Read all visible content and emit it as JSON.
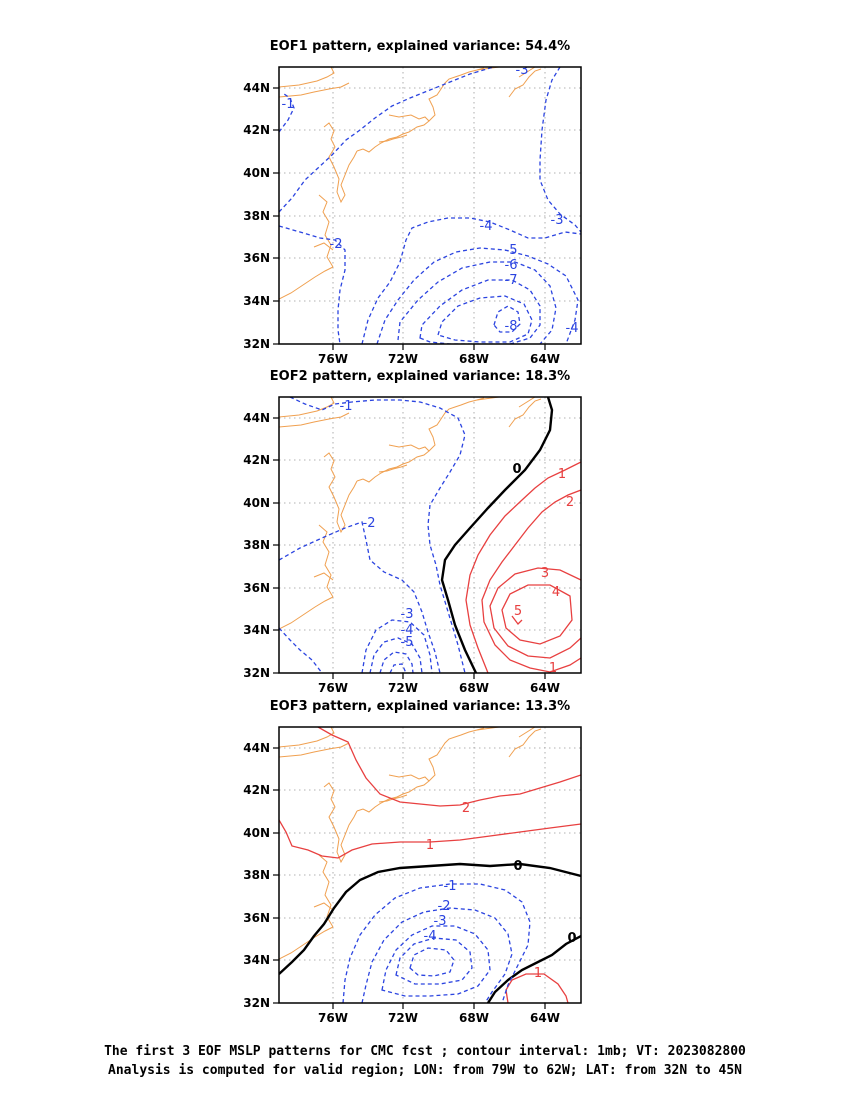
{
  "chart_data": [
    {
      "type": "contour-map",
      "title": "EOF1 pattern, explained variance: 54.4%",
      "lon_range": [
        -78.5,
        -62
      ],
      "lat_range": [
        32,
        45
      ],
      "xticks": [
        "76W",
        "72W",
        "68W",
        "64W"
      ],
      "yticks": [
        "32N",
        "34N",
        "36N",
        "38N",
        "40N",
        "42N",
        "44N"
      ],
      "grid": true,
      "contour_labels": [
        "-1",
        "-2",
        "-3",
        "-3",
        "-4",
        "-4",
        "-5",
        "-6",
        "-7",
        "-8"
      ]
    },
    {
      "type": "contour-map",
      "title": "EOF2 pattern, explained variance: 18.3%",
      "lon_range": [
        -78.5,
        -62
      ],
      "lat_range": [
        32,
        45
      ],
      "xticks": [
        "76W",
        "72W",
        "68W",
        "64W"
      ],
      "yticks": [
        "32N",
        "34N",
        "36N",
        "38N",
        "40N",
        "42N",
        "44N"
      ],
      "grid": true,
      "contour_labels": [
        "-1",
        "-2",
        "-3",
        "-4",
        "-5",
        "0",
        "1",
        "2",
        "3",
        "4",
        "5",
        "1"
      ]
    },
    {
      "type": "contour-map",
      "title": "EOF3 pattern, explained variance: 13.3%",
      "lon_range": [
        -78.5,
        -62
      ],
      "lat_range": [
        32,
        45
      ],
      "xticks": [
        "76W",
        "72W",
        "68W",
        "64W"
      ],
      "yticks": [
        "32N",
        "34N",
        "36N",
        "38N",
        "40N",
        "42N",
        "44N"
      ],
      "grid": true,
      "contour_labels": [
        "2",
        "1",
        "0",
        "0",
        "-1",
        "-2",
        "-3",
        "-4",
        "1"
      ]
    }
  ],
  "colors": {
    "negative": "#2b44e0",
    "positive": "#e84040",
    "zero": "#000000",
    "coast": "#f0a050",
    "grid": "#999999"
  },
  "caption": {
    "line1": "The first 3 EOF MSLP patterns for CMC fcst ; contour interval: 1mb; VT: 2023082800",
    "line2": "Analysis is computed for valid region; LON: from 79W to 62W; LAT: from 32N to 45N"
  }
}
